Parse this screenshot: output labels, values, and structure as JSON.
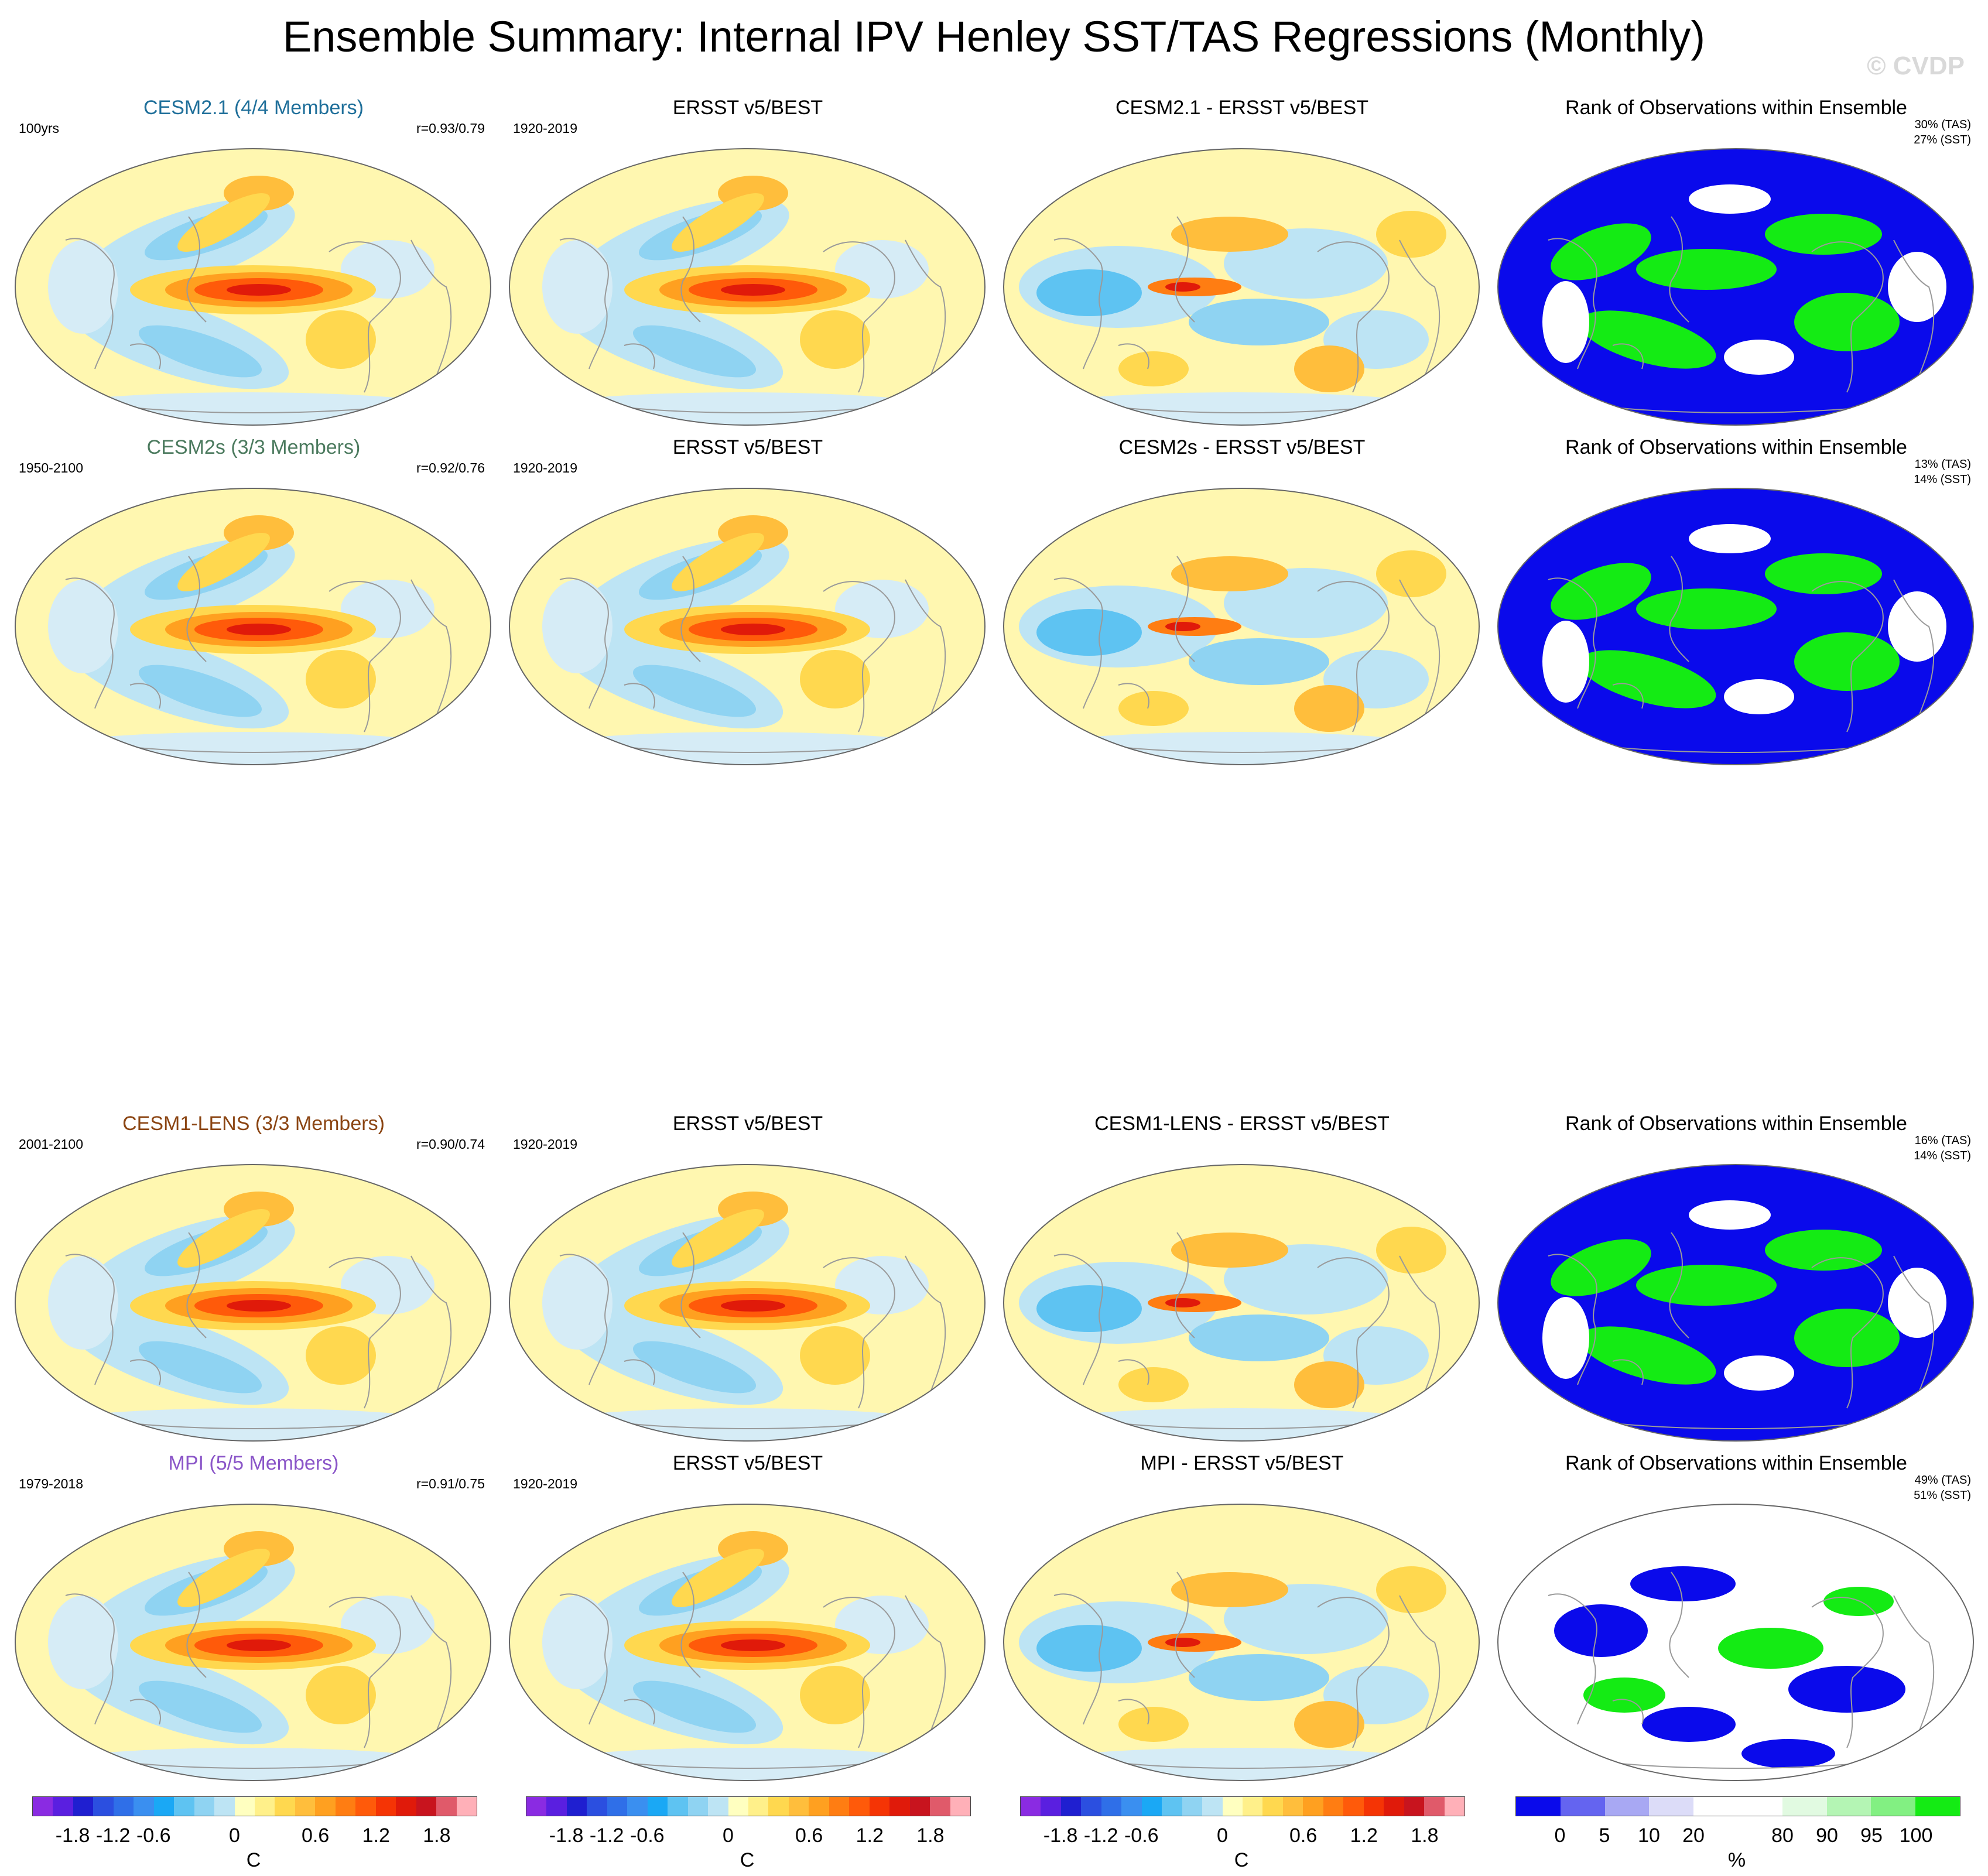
{
  "title": "Ensemble Summary: Internal IPV Henley SST/TAS Regressions (Monthly)",
  "watermark": "© CVDP",
  "rows": [
    {
      "model": {
        "title": "CESM2.1 (4/4 Members)",
        "title_color": "#1f6f9a",
        "left": "100yrs",
        "right": "r=0.93/0.79"
      },
      "obs": {
        "title": "ERSST v5/BEST",
        "left": "1920-2019"
      },
      "diff": {
        "title": "CESM2.1 - ERSST v5/BEST"
      },
      "rank": {
        "title": "Rank of Observations within Ensemble",
        "tas": "30% (TAS)",
        "sst": "27% (SST)"
      }
    },
    {
      "model": {
        "title": "CESM2s (3/3 Members)",
        "title_color": "#4b7a5e",
        "left": "1950-2100",
        "right": "r=0.92/0.76"
      },
      "obs": {
        "title": "ERSST v5/BEST",
        "left": "1920-2019"
      },
      "diff": {
        "title": "CESM2s - ERSST v5/BEST"
      },
      "rank": {
        "title": "Rank of Observations within Ensemble",
        "tas": "13% (TAS)",
        "sst": "14% (SST)"
      }
    },
    {
      "model": {
        "title": "CESM1-LENS (3/3 Members)",
        "title_color": "#8b4513",
        "left": "2001-2100",
        "right": "r=0.90/0.74"
      },
      "obs": {
        "title": "ERSST v5/BEST",
        "left": "1920-2019"
      },
      "diff": {
        "title": "CESM1-LENS - ERSST v5/BEST"
      },
      "rank": {
        "title": "Rank of Observations within Ensemble",
        "tas": "16% (TAS)",
        "sst": "14% (SST)"
      }
    },
    {
      "model": {
        "title": "MPI (5/5 Members)",
        "title_color": "#8a55c8",
        "left": "1979-2018",
        "right": "r=0.91/0.75"
      },
      "obs": {
        "title": "ERSST v5/BEST",
        "left": "1920-2019"
      },
      "diff": {
        "title": "MPI - ERSST v5/BEST"
      },
      "rank": {
        "title": "Rank of Observations within Ensemble",
        "tas": "49% (TAS)",
        "sst": "51% (SST)"
      }
    }
  ],
  "colorbars": {
    "temp": {
      "colors": [
        "#8a2be2",
        "#5a1fe0",
        "#1f1fd0",
        "#2b4fe0",
        "#2f6fe8",
        "#3a8ff0",
        "#1aa8f5",
        "#5ec3f2",
        "#8fd3f2",
        "#bde4f4",
        "#ffffc0",
        "#fff08a",
        "#ffd84f",
        "#ffbe3c",
        "#ffa020",
        "#ff7d12",
        "#ff5a0a",
        "#f53405",
        "#e01a0a",
        "#c8141e",
        "#e05a6a",
        "#ffb0b8"
      ],
      "ticks": [
        "-1.8",
        "-1.2",
        "-0.6",
        "0",
        "0.6",
        "1.2",
        "1.8"
      ],
      "unit": "C"
    },
    "rank": {
      "colors": [
        "#0a0aeb",
        "#6464f0",
        "#a8a8f3",
        "#dcdcf8",
        "#ffffff",
        "#ffffff",
        "#e1fae1",
        "#b4f5b4",
        "#82f082",
        "#14eb14"
      ],
      "ticks": [
        "0",
        "5",
        "10",
        "20",
        "80",
        "90",
        "95",
        "100"
      ],
      "unit": "%"
    }
  }
}
